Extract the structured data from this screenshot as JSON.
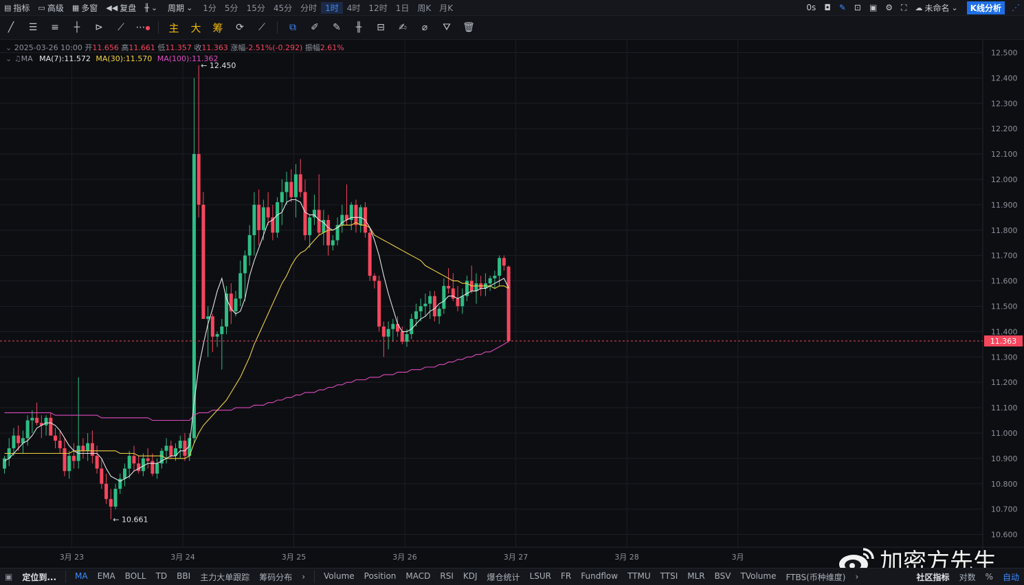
{
  "topbar": {
    "indicators": "指标",
    "advanced": "高级",
    "multi_window": "多窗",
    "replay": "复盘",
    "period_label": "周期",
    "periods": [
      "1分",
      "5分",
      "15分",
      "45分",
      "分时",
      "1时",
      "4时",
      "12时",
      "1日",
      "周K",
      "月K"
    ],
    "active_period": "1时",
    "latency": "0s",
    "layout_name": "未命名",
    "kline_button": "K线分析"
  },
  "toolbar": {
    "main_label": "主",
    "big_label": "大",
    "chip_label": "筹"
  },
  "ohlc": {
    "date": "2025-03-26 10:00",
    "open_label": "开",
    "open": "11.656",
    "high_label": "高",
    "high": "11.661",
    "low_label": "低",
    "low": "11.357",
    "close_label": "收",
    "close": "11.363",
    "change_label": "涨幅",
    "change": "-2.51%(-0.292)",
    "amp_label": "振幅",
    "amp": "2.61%"
  },
  "ma": {
    "label": "MA",
    "ma7": "MA(7):11.572",
    "ma30": "MA(30):11.570",
    "ma100": "MA(100):11.362"
  },
  "colors": {
    "up": "#2ebd85",
    "down": "#f6465d",
    "ma7": "#e6e6e6",
    "ma30": "#f0d341",
    "ma100": "#e04bbf",
    "accent": "#3d8bff"
  },
  "chart_data": {
    "type": "candlestick",
    "ylim": [
      10.55,
      12.55
    ],
    "y_ticks": [
      "12.500",
      "12.400",
      "12.300",
      "12.200",
      "12.100",
      "12.000",
      "11.900",
      "11.800",
      "11.700",
      "11.600",
      "11.500",
      "11.400",
      "11.300",
      "11.200",
      "11.100",
      "11.000",
      "10.900",
      "10.800",
      "10.700",
      "10.600"
    ],
    "x_labels": [
      "3月 23",
      "3月 24",
      "3月 25",
      "3月 26",
      "3月 27",
      "3月 28",
      "3月"
    ],
    "last_price": "11.363",
    "max_label": "12.450",
    "min_label": "10.661",
    "candles": [
      [
        10.86,
        10.91,
        10.84,
        10.9
      ],
      [
        10.9,
        10.98,
        10.87,
        10.94
      ],
      [
        10.94,
        11.02,
        10.91,
        10.99
      ],
      [
        10.99,
        11.03,
        10.93,
        10.96
      ],
      [
        10.96,
        11.01,
        10.92,
        10.98
      ],
      [
        10.98,
        11.07,
        10.95,
        11.05
      ],
      [
        11.05,
        11.09,
        11.0,
        11.06
      ],
      [
        11.06,
        11.12,
        11.03,
        11.04
      ],
      [
        11.04,
        11.07,
        10.98,
        11.03
      ],
      [
        11.03,
        11.07,
        10.99,
        11.06
      ],
      [
        11.06,
        11.08,
        11.0,
        10.99
      ],
      [
        10.99,
        11.02,
        10.94,
        10.97
      ],
      [
        10.97,
        11.01,
        10.92,
        10.94
      ],
      [
        10.94,
        10.98,
        10.83,
        10.85
      ],
      [
        10.85,
        10.93,
        10.82,
        10.91
      ],
      [
        10.91,
        10.96,
        10.86,
        10.89
      ],
      [
        10.89,
        11.22,
        10.86,
        10.95
      ],
      [
        10.95,
        10.98,
        10.9,
        10.93
      ],
      [
        10.93,
        11.0,
        10.89,
        10.96
      ],
      [
        10.96,
        11.01,
        10.88,
        10.91
      ],
      [
        10.91,
        10.95,
        10.84,
        10.86
      ],
      [
        10.86,
        10.9,
        10.78,
        10.8
      ],
      [
        10.8,
        10.84,
        10.72,
        10.74
      ],
      [
        10.74,
        10.78,
        10.66,
        10.71
      ],
      [
        10.71,
        10.8,
        10.7,
        10.78
      ],
      [
        10.78,
        10.84,
        10.76,
        10.82
      ],
      [
        10.82,
        10.88,
        10.79,
        10.86
      ],
      [
        10.86,
        10.93,
        10.82,
        10.91
      ],
      [
        10.91,
        10.95,
        10.85,
        10.88
      ],
      [
        10.88,
        10.91,
        10.84,
        10.85
      ],
      [
        10.85,
        10.92,
        10.83,
        10.9
      ],
      [
        10.9,
        10.94,
        10.86,
        10.89
      ],
      [
        10.89,
        10.92,
        10.83,
        10.84
      ],
      [
        10.84,
        10.9,
        10.82,
        10.88
      ],
      [
        10.88,
        10.94,
        10.86,
        10.93
      ],
      [
        10.93,
        10.98,
        10.88,
        10.95
      ],
      [
        10.95,
        10.97,
        10.9,
        10.91
      ],
      [
        10.91,
        10.96,
        10.89,
        10.94
      ],
      [
        10.94,
        10.99,
        10.9,
        10.97
      ],
      [
        10.97,
        11.0,
        10.89,
        10.91
      ],
      [
        10.91,
        11.0,
        10.89,
        10.98
      ],
      [
        10.98,
        12.4,
        10.96,
        12.1
      ],
      [
        12.1,
        12.45,
        11.85,
        11.9
      ],
      [
        11.9,
        11.95,
        11.45,
        11.45
      ],
      [
        11.45,
        11.5,
        11.3,
        11.46
      ],
      [
        11.46,
        11.47,
        11.32,
        11.38
      ],
      [
        11.38,
        11.4,
        11.34,
        11.39
      ],
      [
        11.39,
        11.45,
        11.25,
        11.42
      ],
      [
        11.42,
        11.58,
        11.39,
        11.55
      ],
      [
        11.55,
        11.59,
        11.43,
        11.48
      ],
      [
        11.48,
        11.56,
        11.46,
        11.53
      ],
      [
        11.53,
        11.68,
        11.5,
        11.63
      ],
      [
        11.63,
        11.72,
        11.52,
        11.7
      ],
      [
        11.7,
        11.82,
        11.66,
        11.78
      ],
      [
        11.78,
        11.95,
        11.7,
        11.9
      ],
      [
        11.9,
        11.96,
        11.74,
        11.8
      ],
      [
        11.8,
        11.92,
        11.76,
        11.89
      ],
      [
        11.89,
        11.95,
        11.82,
        11.85
      ],
      [
        11.85,
        11.9,
        11.76,
        11.79
      ],
      [
        11.79,
        11.93,
        11.77,
        11.91
      ],
      [
        11.91,
        12.0,
        11.82,
        11.95
      ],
      [
        11.95,
        12.03,
        11.9,
        11.99
      ],
      [
        11.99,
        12.04,
        11.91,
        11.93
      ],
      [
        11.93,
        12.06,
        11.85,
        12.02
      ],
      [
        12.02,
        12.08,
        11.93,
        11.95
      ],
      [
        11.95,
        12.0,
        11.76,
        11.78
      ],
      [
        11.78,
        11.86,
        11.73,
        11.85
      ],
      [
        11.85,
        11.94,
        11.82,
        11.88
      ],
      [
        11.88,
        12.02,
        11.78,
        11.79
      ],
      [
        11.79,
        11.88,
        11.74,
        11.84
      ],
      [
        11.84,
        11.86,
        11.7,
        11.74
      ],
      [
        11.74,
        11.78,
        11.72,
        11.76
      ],
      [
        11.76,
        11.85,
        11.74,
        11.82
      ],
      [
        11.82,
        11.9,
        11.79,
        11.86
      ],
      [
        11.86,
        11.98,
        11.82,
        11.84
      ],
      [
        11.84,
        11.91,
        11.8,
        11.9
      ],
      [
        11.9,
        11.92,
        11.79,
        11.82
      ],
      [
        11.82,
        11.9,
        11.79,
        11.89
      ],
      [
        11.89,
        11.91,
        11.77,
        11.79
      ],
      [
        11.79,
        11.81,
        11.6,
        11.62
      ],
      [
        11.62,
        11.63,
        11.57,
        11.6
      ],
      [
        11.6,
        11.62,
        11.4,
        11.42
      ],
      [
        11.42,
        11.44,
        11.3,
        11.38
      ],
      [
        11.38,
        11.44,
        11.33,
        11.41
      ],
      [
        11.41,
        11.45,
        11.36,
        11.43
      ],
      [
        11.43,
        11.46,
        11.38,
        11.4
      ],
      [
        11.4,
        11.42,
        11.35,
        11.36
      ],
      [
        11.36,
        11.41,
        11.34,
        11.39
      ],
      [
        11.39,
        11.47,
        11.37,
        11.45
      ],
      [
        11.45,
        11.51,
        11.42,
        11.48
      ],
      [
        11.48,
        11.53,
        11.44,
        11.5
      ],
      [
        11.5,
        11.55,
        11.46,
        11.51
      ],
      [
        11.51,
        11.56,
        11.45,
        11.54
      ],
      [
        11.54,
        11.56,
        11.44,
        11.46
      ],
      [
        11.46,
        11.5,
        11.43,
        11.49
      ],
      [
        11.49,
        11.61,
        11.47,
        11.58
      ],
      [
        11.58,
        11.65,
        11.55,
        11.57
      ],
      [
        11.57,
        11.63,
        11.52,
        11.53
      ],
      [
        11.53,
        11.58,
        11.48,
        11.5
      ],
      [
        11.5,
        11.57,
        11.47,
        11.54
      ],
      [
        11.54,
        11.62,
        11.52,
        11.6
      ],
      [
        11.6,
        11.66,
        11.55,
        11.56
      ],
      [
        11.56,
        11.63,
        11.51,
        11.59
      ],
      [
        11.59,
        11.62,
        11.54,
        11.57
      ],
      [
        11.57,
        11.63,
        11.54,
        11.59
      ],
      [
        11.59,
        11.62,
        11.56,
        11.61
      ],
      [
        11.61,
        11.64,
        11.57,
        11.62
      ],
      [
        11.62,
        11.7,
        11.58,
        11.69
      ],
      [
        11.69,
        11.7,
        11.64,
        11.66
      ],
      [
        11.656,
        11.661,
        11.357,
        11.363
      ]
    ],
    "ma7": [
      10.89,
      10.9,
      10.92,
      10.94,
      10.96,
      10.97,
      10.99,
      11.02,
      11.03,
      11.04,
      11.04,
      11.03,
      11.01,
      10.98,
      10.95,
      10.93,
      10.92,
      10.92,
      10.92,
      10.92,
      10.92,
      10.9,
      10.86,
      10.83,
      10.82,
      10.81,
      10.82,
      10.83,
      10.85,
      10.86,
      10.87,
      10.88,
      10.88,
      10.88,
      10.89,
      10.9,
      10.91,
      10.91,
      10.93,
      10.93,
      10.95,
      11.12,
      11.26,
      11.35,
      11.43,
      11.49,
      11.56,
      11.61,
      11.53,
      11.49,
      11.47,
      11.48,
      11.53,
      11.62,
      11.68,
      11.73,
      11.78,
      11.83,
      11.84,
      11.86,
      11.87,
      11.91,
      11.92,
      11.92,
      11.91,
      11.87,
      11.86,
      11.86,
      11.84,
      11.83,
      11.81,
      11.8,
      11.81,
      11.83,
      11.84,
      11.85,
      11.85,
      11.85,
      11.84,
      11.81,
      11.76,
      11.7,
      11.62,
      11.55,
      11.49,
      11.43,
      11.4,
      11.4,
      11.41,
      11.43,
      11.45,
      11.46,
      11.48,
      11.49,
      11.51,
      11.52,
      11.54,
      11.54,
      11.53,
      11.54,
      11.55,
      11.56,
      11.56,
      11.57,
      11.57,
      11.58,
      11.59,
      11.6,
      11.61,
      11.572
    ],
    "ma30": [
      10.92,
      10.92,
      10.92,
      10.92,
      10.92,
      10.92,
      10.92,
      10.92,
      10.92,
      10.92,
      10.92,
      10.92,
      10.92,
      10.92,
      10.92,
      10.93,
      10.93,
      10.93,
      10.93,
      10.93,
      10.93,
      10.93,
      10.93,
      10.93,
      10.93,
      10.92,
      10.92,
      10.92,
      10.92,
      10.91,
      10.91,
      10.91,
      10.91,
      10.91,
      10.91,
      10.9,
      10.9,
      10.9,
      10.9,
      10.9,
      10.91,
      10.96,
      11.0,
      11.03,
      11.05,
      11.07,
      11.09,
      11.11,
      11.13,
      11.16,
      11.19,
      11.22,
      11.26,
      11.3,
      11.35,
      11.39,
      11.43,
      11.47,
      11.51,
      11.55,
      11.59,
      11.62,
      11.66,
      11.69,
      11.71,
      11.72,
      11.74,
      11.76,
      11.78,
      11.79,
      11.8,
      11.8,
      11.81,
      11.82,
      11.82,
      11.82,
      11.83,
      11.82,
      11.82,
      11.81,
      11.78,
      11.77,
      11.76,
      11.75,
      11.74,
      11.73,
      11.72,
      11.71,
      11.7,
      11.69,
      11.68,
      11.66,
      11.65,
      11.64,
      11.63,
      11.62,
      11.61,
      11.6,
      11.6,
      11.59,
      11.59,
      11.58,
      11.58,
      11.58,
      11.58,
      11.58,
      11.57,
      11.58,
      11.58,
      11.57
    ],
    "ma100": [
      11.08,
      11.08,
      11.08,
      11.08,
      11.08,
      11.08,
      11.08,
      11.08,
      11.08,
      11.08,
      11.08,
      11.07,
      11.07,
      11.07,
      11.07,
      11.07,
      11.07,
      11.07,
      11.07,
      11.07,
      11.07,
      11.06,
      11.06,
      11.06,
      11.06,
      11.06,
      11.06,
      11.06,
      11.06,
      11.06,
      11.06,
      11.06,
      11.05,
      11.05,
      11.05,
      11.05,
      11.05,
      11.05,
      11.05,
      11.05,
      11.05,
      11.07,
      11.08,
      11.08,
      11.08,
      11.09,
      11.09,
      11.09,
      11.09,
      11.09,
      11.1,
      11.1,
      11.1,
      11.1,
      11.11,
      11.11,
      11.11,
      11.12,
      11.12,
      11.13,
      11.13,
      11.14,
      11.14,
      11.15,
      11.15,
      11.16,
      11.16,
      11.16,
      11.17,
      11.17,
      11.18,
      11.18,
      11.19,
      11.19,
      11.2,
      11.2,
      11.21,
      11.21,
      11.21,
      11.22,
      11.22,
      11.22,
      11.23,
      11.23,
      11.23,
      11.24,
      11.24,
      11.24,
      11.25,
      11.25,
      11.25,
      11.26,
      11.26,
      11.26,
      11.27,
      11.27,
      11.28,
      11.28,
      11.29,
      11.29,
      11.3,
      11.3,
      11.31,
      11.31,
      11.32,
      11.32,
      11.33,
      11.34,
      11.35,
      11.362
    ]
  },
  "bottombar": {
    "locate": "定位到...",
    "main_indicators": [
      "MA",
      "EMA",
      "BOLL",
      "TD",
      "BBI",
      "主力大单跟踪",
      "筹码分布"
    ],
    "active_indicator": "MA",
    "sub_indicators": [
      "Volume",
      "Position",
      "MACD",
      "RSI",
      "KDJ",
      "爆仓统计",
      "LSUR",
      "FR",
      "Fundflow",
      "TTMU",
      "TTSI",
      "MLR",
      "BSV",
      "TVolume",
      "FTBS(币种维度)"
    ],
    "community": "社区指标",
    "log_label": "对数",
    "pct_label": "%",
    "auto_label": "自动"
  },
  "watermark": {
    "text": "加密方先生"
  }
}
